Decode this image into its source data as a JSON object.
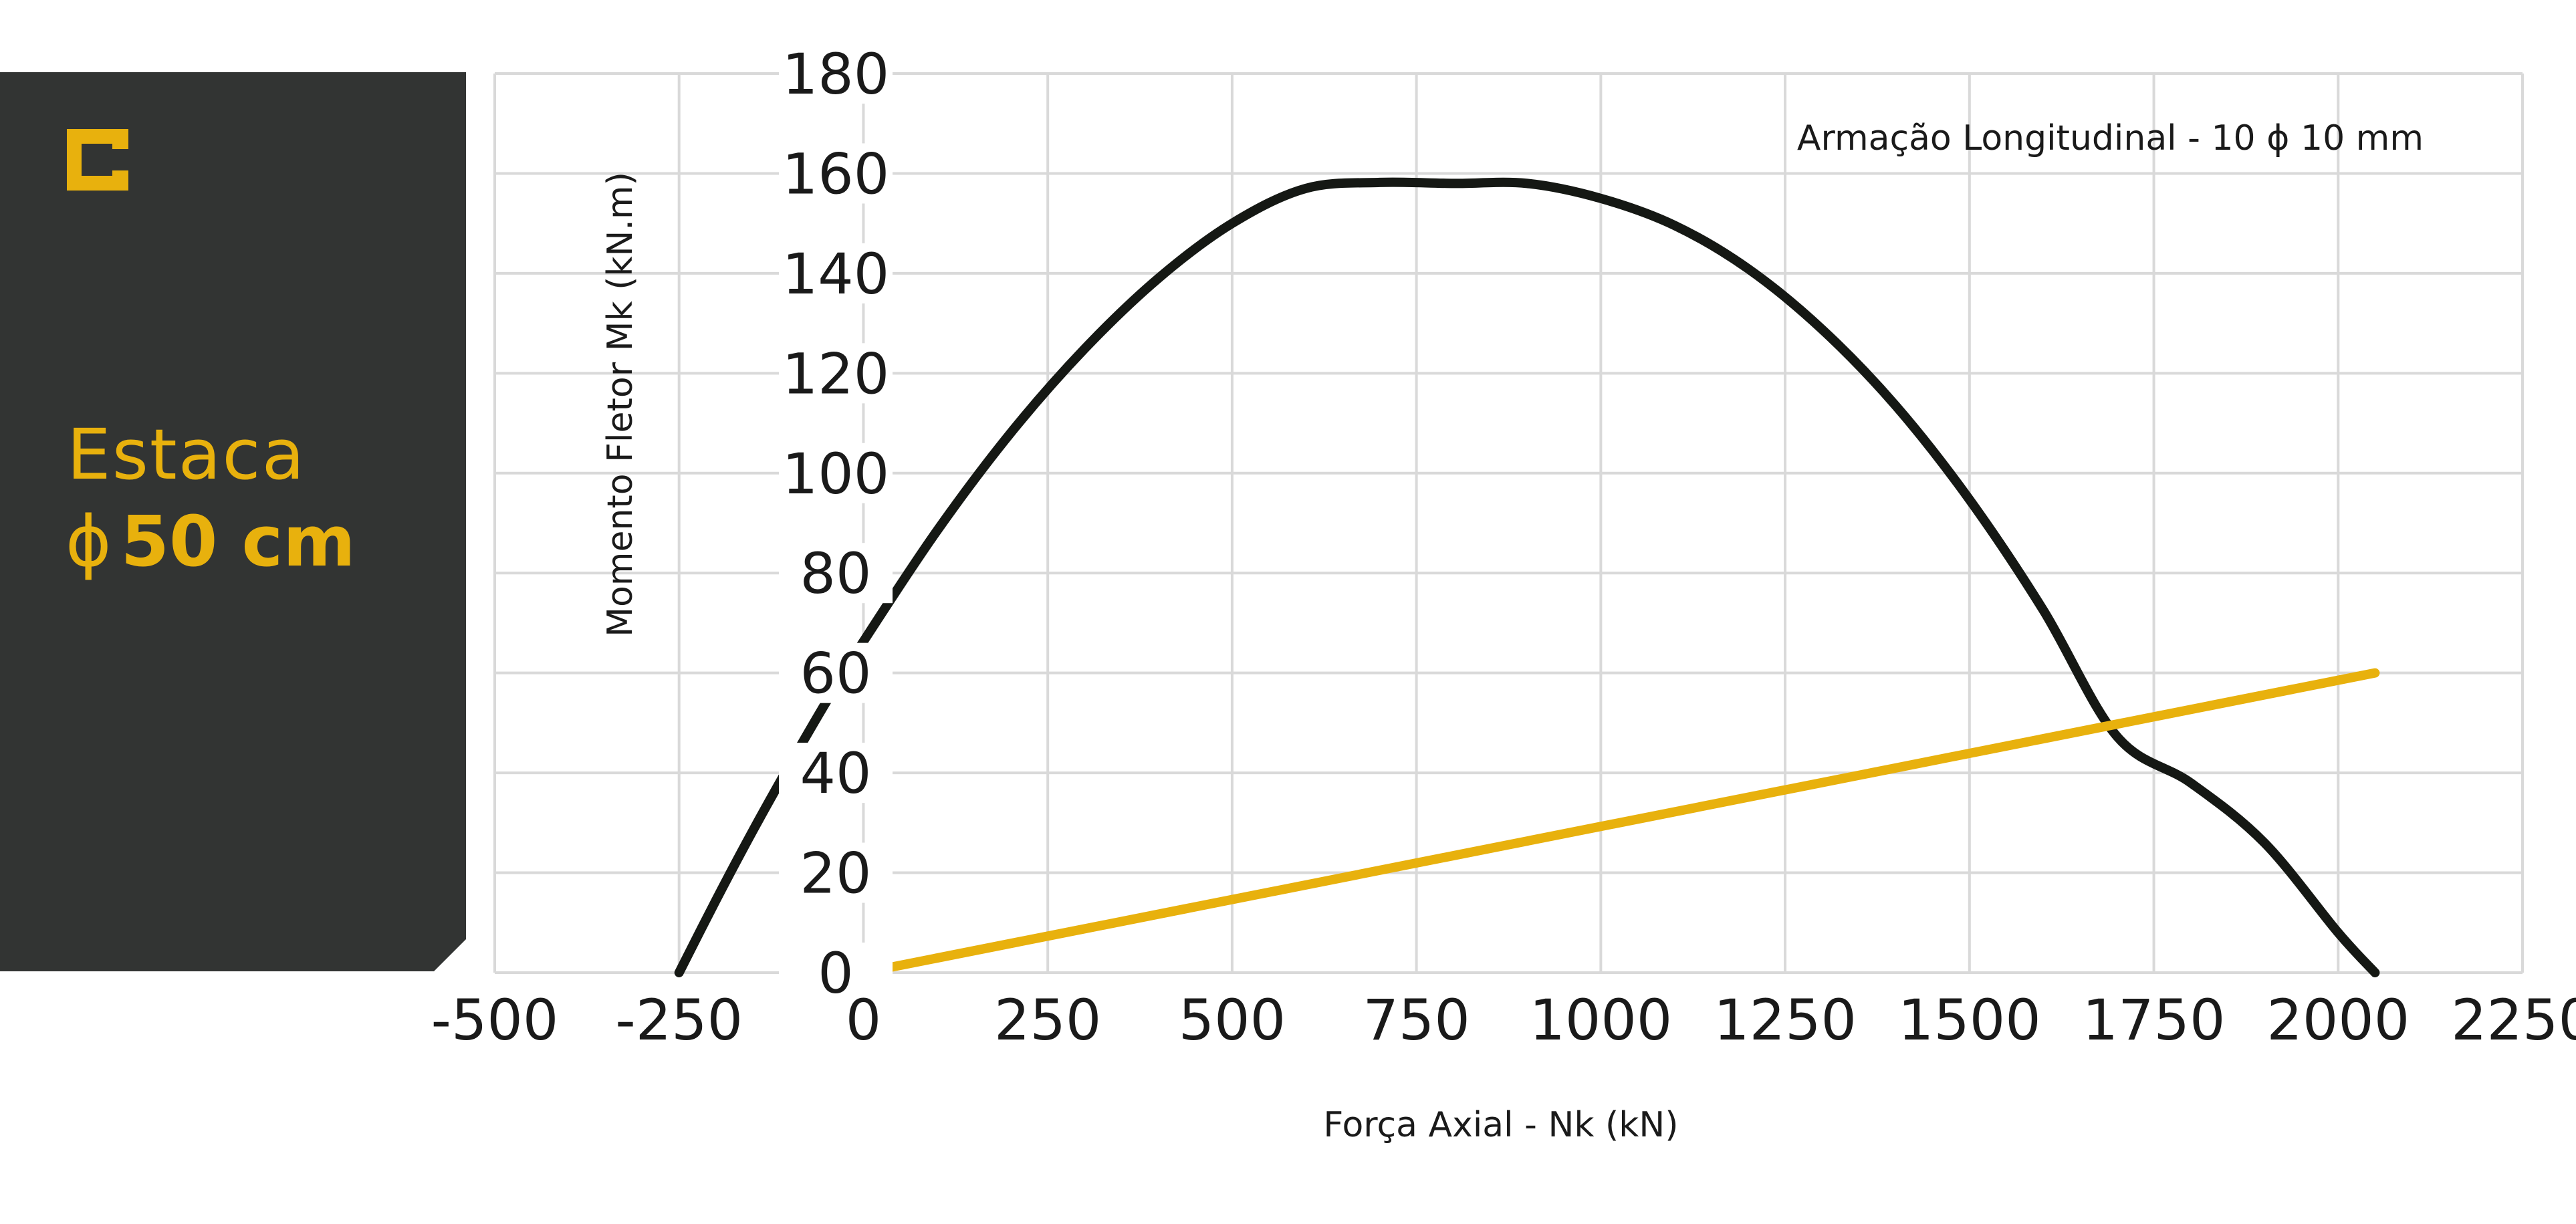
{
  "panel": {
    "background": "#323433",
    "accent": "#e8b10d",
    "title_line1": "Estaca",
    "title_line2_symbol": "ϕ",
    "title_line2_value": "50 cm",
    "logo_icon": "brand-c-icon"
  },
  "chart_data": {
    "type": "line",
    "xlabel": "Força Axial - Nk (kN)",
    "ylabel": "Momento Fletor Mk (kN.m)",
    "annotation": "Armação Longitudinal - 10 ϕ 10 mm",
    "xlim": [
      -500,
      2250
    ],
    "ylim": [
      0,
      180
    ],
    "x_ticks": [
      -500,
      -250,
      0,
      250,
      500,
      750,
      1000,
      1250,
      1500,
      1750,
      2000,
      2250
    ],
    "y_ticks": [
      0,
      20,
      40,
      60,
      80,
      100,
      120,
      140,
      160,
      180
    ],
    "grid": true,
    "series": [
      {
        "color": "#151814",
        "x": [
          -250,
          -200,
          -150,
          -100,
          -50,
          0,
          100,
          200,
          300,
          400,
          500,
          600,
          700,
          800,
          900,
          1000,
          1100,
          1200,
          1300,
          1400,
          1500,
          1600,
          1700,
          1800,
          1900,
          2000,
          2050
        ],
        "y": [
          0,
          14.5,
          28.4,
          41.6,
          54.3,
          66.3,
          88.5,
          108.1,
          124.9,
          139.0,
          150.0,
          157.0,
          158.2,
          158.0,
          158.0,
          155.0,
          149.6,
          140.9,
          128.8,
          113.5,
          94.7,
          72.6,
          47.3,
          38.0,
          26.0,
          8.0,
          0
        ]
      },
      {
        "color": "#e8b10d",
        "x": [
          0,
          2050
        ],
        "y": [
          0,
          60
        ]
      }
    ]
  }
}
